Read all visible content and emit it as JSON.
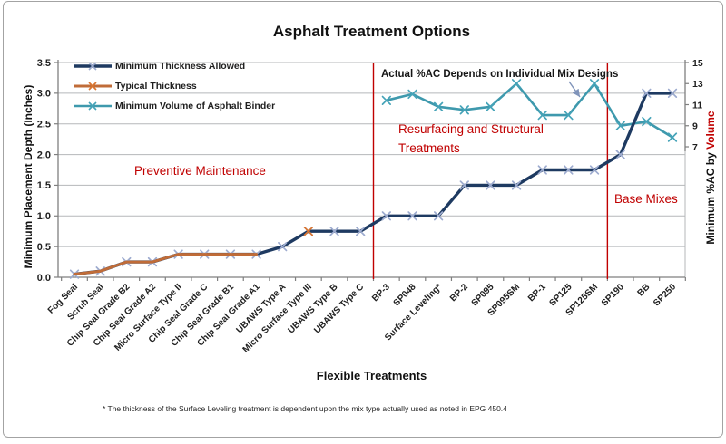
{
  "chart_data": {
    "type": "line",
    "title": "Asphalt Treatment Options",
    "xlabel": "Flexible Treatments",
    "ylabel_left": "Minimum Placement Depth (Inches)",
    "ylabel_right_prefix": "Minimum %AC by ",
    "ylabel_right_emphasis": "Volume",
    "footnote": "* The thickness of the Surface Leveling treatment is dependent upon the mix type actually used as noted in EPG 450.4",
    "annotation": "Actual %AC Depends on Individual Mix Designs",
    "legend_position": "top-left",
    "grid": true,
    "left_axis": {
      "min": 0,
      "max": 3.5,
      "step": 0.5,
      "tick_labels": [
        "0.0",
        "0.5",
        "1.0",
        "1.5",
        "2.0",
        "2.5",
        "3.0",
        "3.5"
      ]
    },
    "right_axis": {
      "tick_values": [
        15,
        13,
        11,
        9,
        7
      ],
      "tick_labels": [
        "15",
        "13",
        "11",
        "9",
        "7"
      ]
    },
    "categories": [
      "Fog Seal",
      "Scrub Seal",
      "Chip Seal Grade B2",
      "Chip Seal Grade A2",
      "Micro Surface Type II",
      "Chip Seal Grade C",
      "Chip Seal Grade B1",
      "Chip Seal Grade A1",
      "UBAWS Type A",
      "Micro Surface Type III",
      "UBAWS Type B",
      "UBAWS Type C",
      "BP-3",
      "SP048",
      "Surface Leveling*",
      "BP-2",
      "SP095",
      "SP095SM",
      "BP-1",
      "SP125",
      "SP125SM",
      "SP190",
      "BB",
      "SP250"
    ],
    "series": [
      {
        "name": "Minimum Thickness Allowed",
        "axis": "left",
        "color": "#1e3a61",
        "marker_color": "#9dabcf",
        "line_width": 3.4,
        "markers": "all",
        "values": [
          0.05,
          0.1,
          0.25,
          0.25,
          0.375,
          0.375,
          0.375,
          0.375,
          0.5,
          0.75,
          0.75,
          0.75,
          1.0,
          1.0,
          1.0,
          1.5,
          1.5,
          1.5,
          1.75,
          1.75,
          1.75,
          2.0,
          3.0,
          3.0
        ]
      },
      {
        "name": "Typical Thickness",
        "axis": "left",
        "color": "#c06c38",
        "marker_color": "#da7530",
        "line_width": 3,
        "markers": "indices",
        "marker_at": [
          9
        ],
        "values": [
          0.05,
          0.1,
          0.25,
          0.25,
          0.375,
          0.375,
          0.375,
          0.375,
          null,
          0.75,
          null,
          null,
          null,
          null,
          null,
          null,
          null,
          null,
          null,
          null,
          null,
          null,
          null,
          null
        ]
      },
      {
        "name": "Minimum Volume of Asphalt Binder",
        "axis": "right",
        "color": "#3e99ad",
        "marker_color": "#45a3b8",
        "line_width": 2.6,
        "markers": "all",
        "values": [
          null,
          null,
          null,
          null,
          null,
          null,
          null,
          null,
          null,
          null,
          null,
          null,
          11.4,
          12.0,
          10.8,
          10.5,
          10.8,
          13.0,
          10.0,
          10.0,
          13.0,
          9.0,
          9.4,
          7.9
        ]
      }
    ],
    "dividers": {
      "color": "#c00000",
      "after_indices": [
        11,
        20
      ]
    },
    "regions": {
      "preventive": "Preventive Maintenance",
      "resurfacing": "Resurfacing and Structural Treatments",
      "base": "Base Mixes"
    }
  }
}
